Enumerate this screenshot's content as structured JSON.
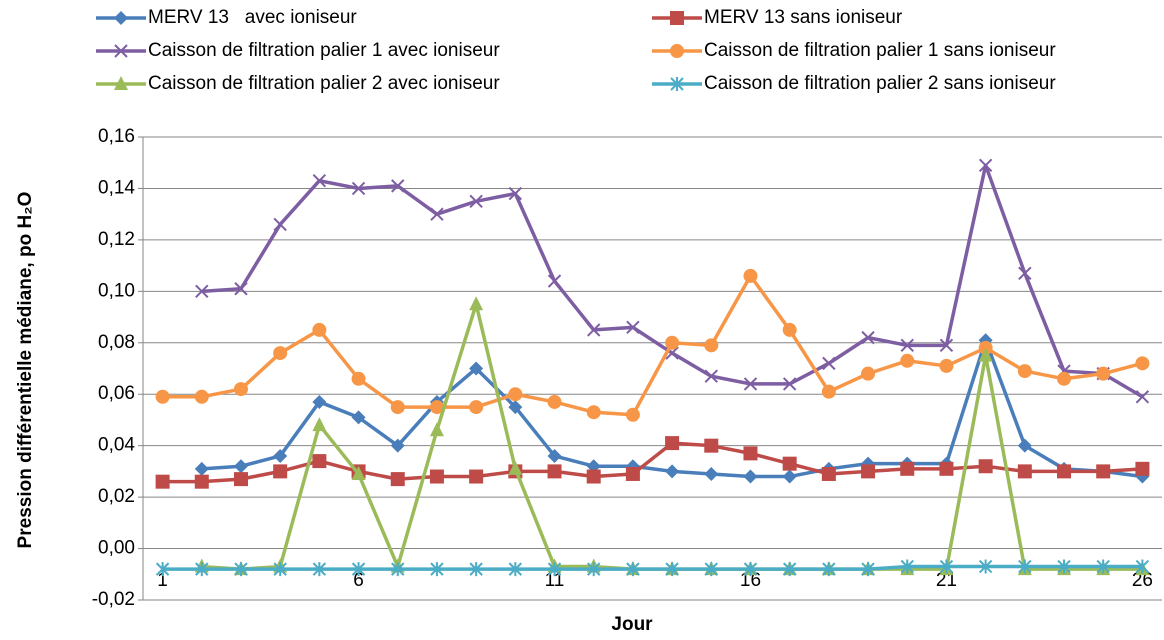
{
  "chart_data": {
    "type": "line",
    "y_label": "Pression différentielle médiane,  po H₂O",
    "x_label": "Jour",
    "categories": [
      "1",
      null,
      null,
      null,
      null,
      "6",
      null,
      null,
      null,
      null,
      "11",
      null,
      null,
      null,
      null,
      "16",
      null,
      null,
      null,
      null,
      "21",
      null,
      null,
      null,
      null,
      "26"
    ],
    "series": [
      {
        "name": "MERV 13   avec ioniseur",
        "color": "#4a7ebb",
        "marker": "diamond",
        "values": [
          null,
          0.031,
          0.032,
          0.036,
          0.057,
          0.051,
          0.04,
          0.057,
          0.07,
          0.055,
          0.036,
          0.032,
          0.032,
          0.03,
          0.029,
          0.028,
          0.028,
          0.031,
          0.033,
          0.033,
          0.033,
          0.081,
          0.04,
          0.031,
          0.03,
          0.028
        ]
      },
      {
        "name": "MERV 13 sans ioniseur",
        "color": "#be4b48",
        "marker": "square",
        "values": [
          0.026,
          0.026,
          0.027,
          0.03,
          0.034,
          0.03,
          0.027,
          0.028,
          0.028,
          0.03,
          0.03,
          0.028,
          0.029,
          0.041,
          0.04,
          0.037,
          0.033,
          0.029,
          0.03,
          0.031,
          0.031,
          0.032,
          0.03,
          0.03,
          0.03,
          0.031
        ]
      },
      {
        "name": "Caisson de filtration palier 1 avec ioniseur",
        "color": "#7e5ea3",
        "marker": "x",
        "values": [
          null,
          0.1,
          0.101,
          0.126,
          0.143,
          0.14,
          0.141,
          0.13,
          0.135,
          0.138,
          0.104,
          0.085,
          0.086,
          0.076,
          0.067,
          0.064,
          0.064,
          0.072,
          0.082,
          0.079,
          0.079,
          0.149,
          0.107,
          0.069,
          0.068,
          0.059
        ]
      },
      {
        "name": "Caisson de filtration palier 1 sans ioniseur",
        "color": "#f79646",
        "marker": "circle",
        "values": [
          0.059,
          0.059,
          0.062,
          0.076,
          0.085,
          0.066,
          0.055,
          0.055,
          0.055,
          0.06,
          0.057,
          0.053,
          0.052,
          0.08,
          0.079,
          0.106,
          0.085,
          0.061,
          0.068,
          0.073,
          0.071,
          0.078,
          0.069,
          0.066,
          0.068,
          0.072
        ]
      },
      {
        "name": "Caisson de filtration palier 2 avec ioniseur",
        "color": "#9bbb59",
        "marker": "triangle",
        "values": [
          null,
          -0.007,
          -0.008,
          -0.007,
          0.048,
          0.029,
          -0.007,
          0.046,
          0.095,
          0.031,
          -0.007,
          -0.007,
          -0.008,
          -0.008,
          -0.008,
          -0.008,
          -0.008,
          -0.008,
          -0.008,
          -0.008,
          -0.008,
          0.075,
          -0.008,
          -0.008,
          -0.008,
          -0.008
        ]
      },
      {
        "name": "Caisson de filtration palier 2 sans ioniseur",
        "color": "#4bacc6",
        "marker": "asterisk",
        "values": [
          -0.008,
          -0.008,
          -0.008,
          -0.008,
          -0.008,
          -0.008,
          -0.008,
          -0.008,
          -0.008,
          -0.008,
          -0.008,
          -0.008,
          -0.008,
          -0.008,
          -0.008,
          -0.008,
          -0.008,
          -0.008,
          -0.008,
          -0.007,
          -0.007,
          -0.007,
          -0.007,
          -0.007,
          -0.007,
          -0.007
        ]
      }
    ],
    "ylim": [
      -0.02,
      0.16
    ],
    "yticks": [
      {
        "value": -0.02,
        "label": "-0,02"
      },
      {
        "value": 0,
        "label": "0,00"
      },
      {
        "value": 0.02,
        "label": "0,02"
      },
      {
        "value": 0.04,
        "label": "0,04"
      },
      {
        "value": 0.06,
        "label": "0,06"
      },
      {
        "value": 0.08,
        "label": "0,08"
      },
      {
        "value": 0.1,
        "label": "0,10"
      },
      {
        "value": 0.12,
        "label": "0,12"
      },
      {
        "value": 0.14,
        "label": "0,14"
      },
      {
        "value": 0.16,
        "label": "0,16"
      }
    ],
    "grid": true
  }
}
